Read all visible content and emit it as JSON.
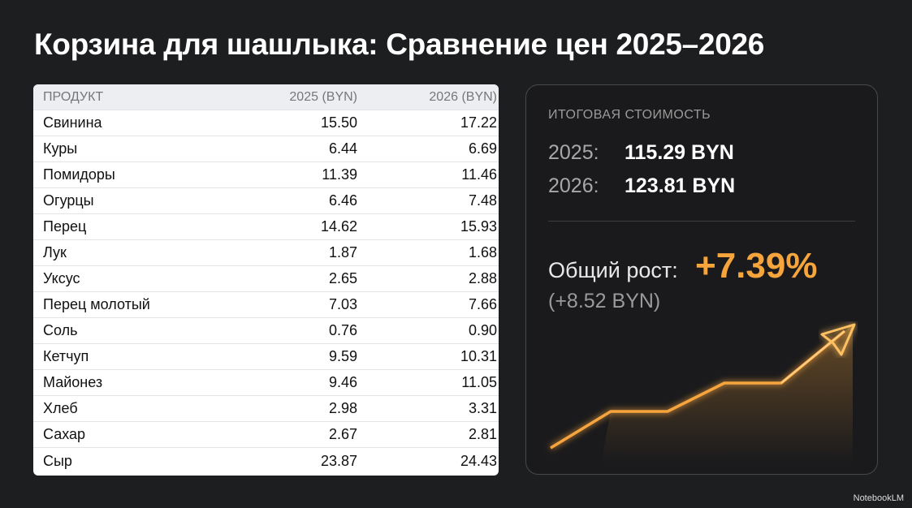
{
  "header": {
    "title": "Корзина для шашлыка: Сравнение цен 2025–2026"
  },
  "table": {
    "columns": [
      "ПРОДУКТ",
      "2025 (BYN)",
      "2026 (BYN)"
    ],
    "rows": [
      [
        "Свинина",
        "15.50",
        "17.22"
      ],
      [
        "Куры",
        "6.44",
        "6.69"
      ],
      [
        "Помидоры",
        "11.39",
        "11.46"
      ],
      [
        "Огурцы",
        "6.46",
        "7.48"
      ],
      [
        "Перец",
        "14.62",
        "15.93"
      ],
      [
        "Лук",
        "1.87",
        "1.68"
      ],
      [
        "Уксус",
        "2.65",
        "2.88"
      ],
      [
        "Перец молотый",
        "7.03",
        "7.66"
      ],
      [
        "Соль",
        "0.76",
        "0.90"
      ],
      [
        "Кетчуп",
        "9.59",
        "10.31"
      ],
      [
        "Майонез",
        "9.46",
        "11.05"
      ],
      [
        "Хлеб",
        "2.98",
        "3.31"
      ],
      [
        "Сахар",
        "2.67",
        "2.81"
      ],
      [
        "Сыр",
        "23.87",
        "24.43"
      ]
    ]
  },
  "summary": {
    "label": "ИТОГОВАЯ СТОИМОСТЬ",
    "totals": [
      {
        "year": "2025:",
        "amount": "115.29 BYN"
      },
      {
        "year": "2026:",
        "amount": "123.81 BYN"
      }
    ],
    "growth_label": "Общий рост:",
    "growth_value": "+7.39%",
    "growth_delta": "(+8.52 BYN)"
  },
  "watermark": "NotebookLM"
}
